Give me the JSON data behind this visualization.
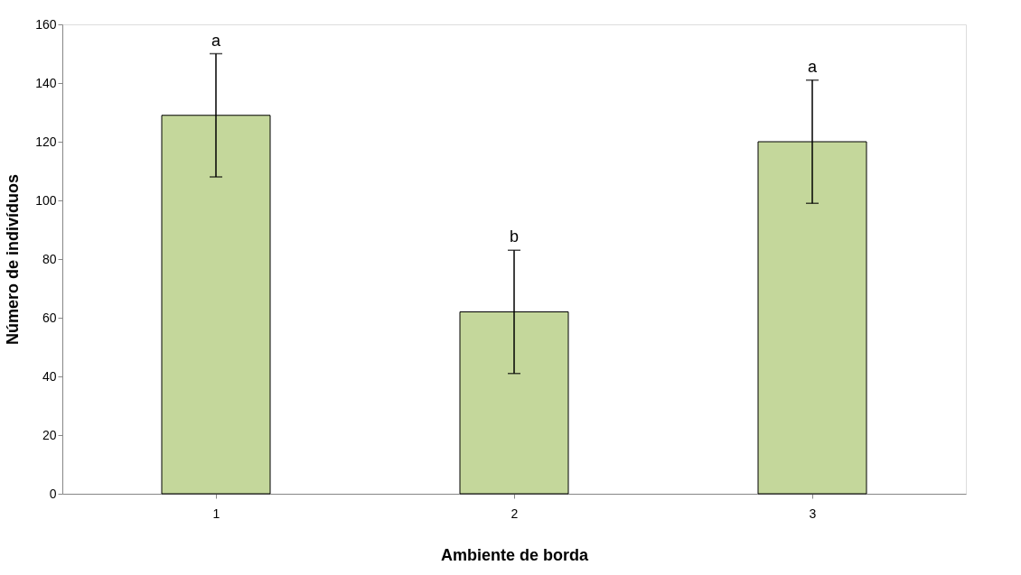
{
  "chart_data": {
    "type": "bar",
    "xlabel": "Ambiente de borda",
    "ylabel": "Número de indivíduos",
    "categories": [
      "1",
      "2",
      "3"
    ],
    "values": [
      129,
      62,
      120
    ],
    "errors": [
      21,
      21,
      21
    ],
    "color": "#c4d79b",
    "ylim": [
      0,
      160
    ],
    "yticks": [
      0,
      20,
      40,
      60,
      80,
      100,
      120,
      140,
      160
    ],
    "grid": false,
    "annotations": [
      {
        "text": "a",
        "x": "1",
        "y": 150
      },
      {
        "text": "b",
        "x": "2",
        "y": 83
      },
      {
        "text": "a",
        "x": "3",
        "y": 141
      }
    ]
  }
}
